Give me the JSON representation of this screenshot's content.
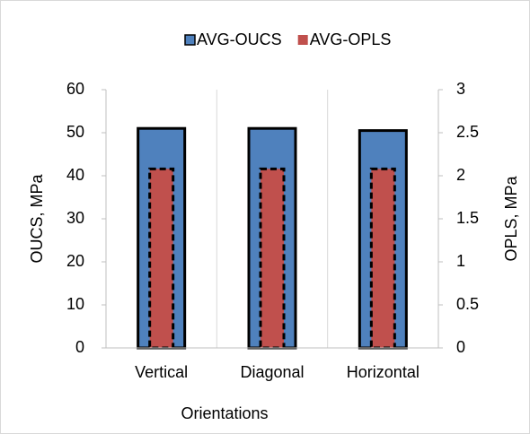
{
  "chart_data": {
    "type": "bar",
    "categories": [
      "Vertical",
      "Diagonal",
      "Horizontal"
    ],
    "series": [
      {
        "name": "AVG-OUCS",
        "color": "#4f81bd",
        "values": [
          51,
          51,
          50.5
        ]
      },
      {
        "name": "AVG-OPLS",
        "color": "#c0504d",
        "values": [
          2.08,
          2.08,
          2.08
        ],
        "axis": "y2"
      }
    ],
    "xlabel": "Orientations",
    "ylabel": "OUCS, MPa",
    "y2label": "OPLS, MPa",
    "ylim": [
      0,
      60
    ],
    "yticks": [
      0,
      10,
      20,
      30,
      40,
      50,
      60
    ],
    "y2lim": [
      0,
      3
    ],
    "y2ticks": [
      0,
      0.5,
      1,
      1.5,
      2,
      2.5,
      3
    ],
    "legend": "top",
    "grid": "x"
  }
}
